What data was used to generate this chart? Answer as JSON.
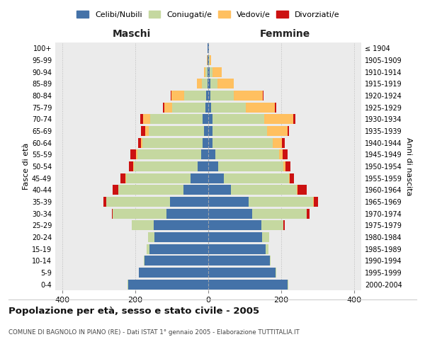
{
  "age_groups": [
    "0-4",
    "5-9",
    "10-14",
    "15-19",
    "20-24",
    "25-29",
    "30-34",
    "35-39",
    "40-44",
    "45-49",
    "50-54",
    "55-59",
    "60-64",
    "65-69",
    "70-74",
    "75-79",
    "80-84",
    "85-89",
    "90-94",
    "95-99",
    "100+"
  ],
  "birth_years": [
    "2000-2004",
    "1995-1999",
    "1990-1994",
    "1985-1989",
    "1980-1984",
    "1975-1979",
    "1970-1974",
    "1965-1969",
    "1960-1964",
    "1955-1959",
    "1950-1954",
    "1945-1949",
    "1940-1944",
    "1935-1939",
    "1930-1934",
    "1925-1929",
    "1920-1924",
    "1915-1919",
    "1910-1914",
    "1905-1909",
    "≤ 1904"
  ],
  "maschi": {
    "celibi": [
      220,
      190,
      175,
      162,
      148,
      150,
      115,
      105,
      68,
      48,
      30,
      20,
      15,
      12,
      15,
      8,
      5,
      2,
      2,
      1,
      1
    ],
    "coniugati": [
      1,
      1,
      2,
      8,
      18,
      60,
      148,
      175,
      178,
      178,
      175,
      175,
      165,
      152,
      145,
      92,
      62,
      15,
      5,
      1,
      0
    ],
    "vedovi": [
      0,
      0,
      0,
      0,
      0,
      0,
      0,
      0,
      1,
      1,
      2,
      3,
      5,
      10,
      18,
      20,
      35,
      15,
      5,
      1,
      0
    ],
    "divorziati": [
      0,
      0,
      0,
      0,
      0,
      0,
      2,
      8,
      15,
      15,
      10,
      15,
      8,
      10,
      8,
      5,
      2,
      0,
      0,
      0,
      0
    ]
  },
  "femmine": {
    "nubili": [
      218,
      185,
      170,
      158,
      148,
      145,
      120,
      110,
      62,
      42,
      28,
      20,
      12,
      12,
      12,
      8,
      5,
      5,
      3,
      1,
      1
    ],
    "coniugate": [
      1,
      1,
      2,
      8,
      20,
      62,
      150,
      178,
      182,
      180,
      178,
      175,
      165,
      150,
      142,
      95,
      65,
      20,
      8,
      2,
      0
    ],
    "vedove": [
      0,
      0,
      0,
      0,
      0,
      0,
      0,
      1,
      1,
      2,
      5,
      10,
      25,
      55,
      80,
      80,
      80,
      45,
      25,
      4,
      1
    ],
    "divorziate": [
      0,
      0,
      0,
      0,
      0,
      3,
      8,
      12,
      25,
      12,
      15,
      12,
      8,
      5,
      5,
      3,
      2,
      0,
      0,
      0,
      0
    ]
  },
  "colors": {
    "celibi": "#4472a8",
    "coniugati": "#c5d8a0",
    "vedovi": "#ffc060",
    "divorziati": "#cc1111"
  },
  "xlim": 420,
  "title": "Popolazione per età, sesso e stato civile - 2005",
  "subtitle": "COMUNE DI BAGNOLO IN PIANO (RE) - Dati ISTAT 1° gennaio 2005 - Elaborazione TUTTITALIA.IT",
  "ylabel_left": "Fasce di età",
  "ylabel_right": "Anni di nascita",
  "xlabel_left": "Maschi",
  "xlabel_right": "Femmine"
}
